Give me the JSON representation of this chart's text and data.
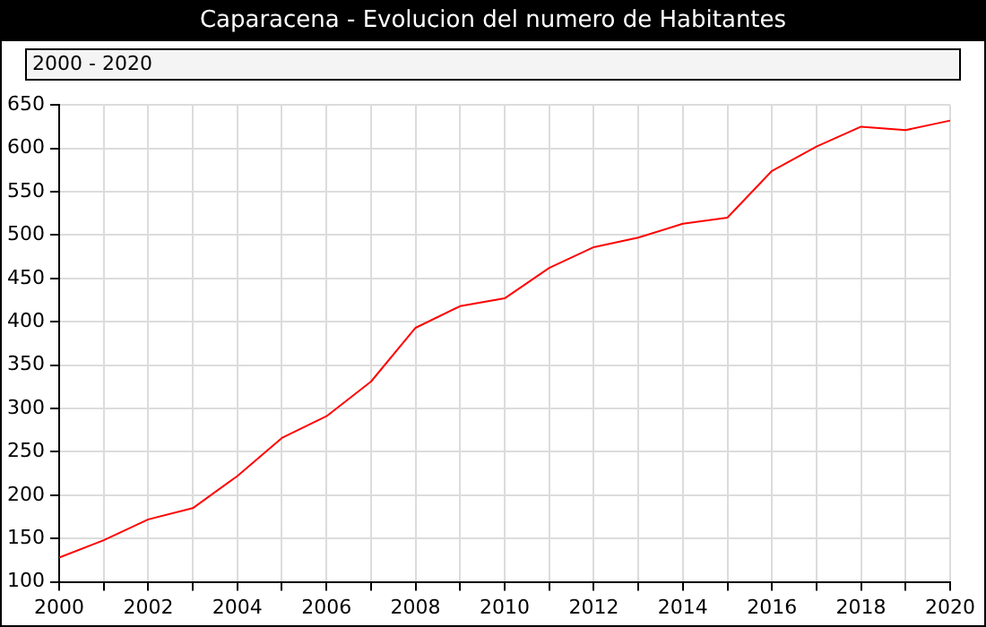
{
  "chart_data": {
    "type": "line",
    "title": "Caparacena - Evolucion del numero de Habitantes",
    "subtitle": "2000 - 2020",
    "x": [
      2000,
      2001,
      2002,
      2003,
      2004,
      2005,
      2006,
      2007,
      2008,
      2009,
      2010,
      2011,
      2012,
      2013,
      2014,
      2015,
      2016,
      2017,
      2018,
      2019,
      2020
    ],
    "series": [
      {
        "color": "#ff0000",
        "values": [
          128,
          148,
          172,
          185,
          222,
          266,
          291,
          331,
          393,
          418,
          427,
          462,
          486,
          497,
          513,
          520,
          574,
          602,
          625,
          621,
          632
        ]
      }
    ],
    "xlim": [
      2000,
      2020
    ],
    "xticks": [
      2000,
      {
        "value": 2001,
        "label": null
      },
      2002,
      {
        "value": 2003,
        "label": null
      },
      2004,
      {
        "value": 2005,
        "label": null
      },
      2006,
      {
        "value": 2007,
        "label": null
      },
      2008,
      {
        "value": 2009,
        "label": null
      },
      2010,
      {
        "value": 2011,
        "label": null
      },
      2012,
      {
        "value": 2013,
        "label": null
      },
      2014,
      {
        "value": 2015,
        "label": null
      },
      2016,
      {
        "value": 2017,
        "label": null
      },
      2018,
      {
        "value": 2019,
        "label": null
      },
      2020
    ],
    "ylim": [
      100,
      650
    ],
    "yticks": [
      100,
      150,
      200,
      250,
      300,
      350,
      400,
      450,
      500,
      550,
      600,
      650
    ],
    "grid": true,
    "legend": false,
    "marker": "none",
    "line_style": "solid"
  }
}
